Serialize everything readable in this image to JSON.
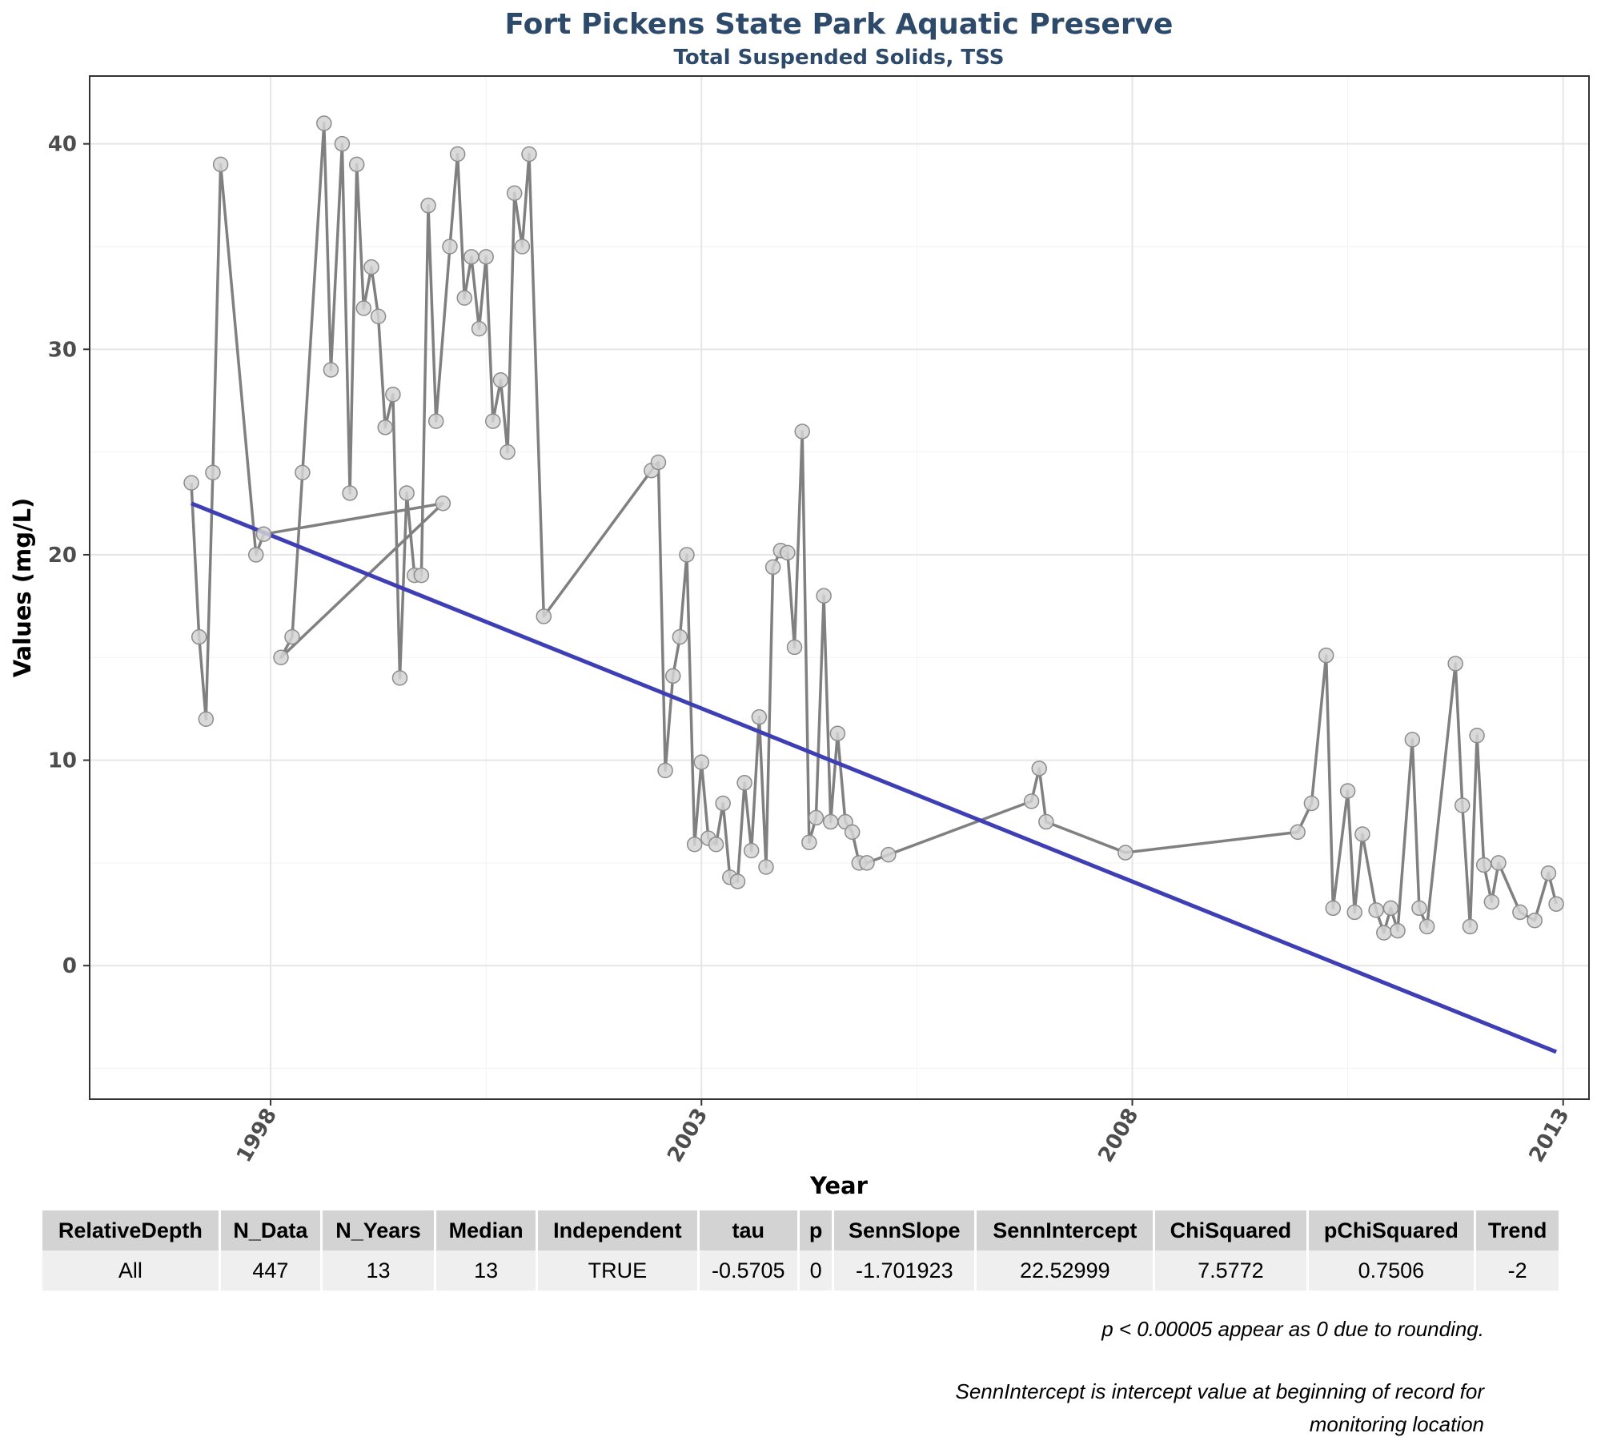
{
  "chart_data": {
    "type": "line",
    "title": "Fort Pickens State Park Aquatic Preserve",
    "subtitle": "Total Suspended Solids, TSS",
    "xlabel": "Year",
    "ylabel": "Values (mg/L)",
    "xlim": [
      1995.9,
      2013.3
    ],
    "ylim": [
      -6.5,
      43.3
    ],
    "x_ticks": [
      1998,
      2003,
      2008,
      2013
    ],
    "y_ticks": [
      0,
      10,
      20,
      30,
      40
    ],
    "grid": true,
    "colors": {
      "series": "#808080",
      "point_fill": "#d3d3d3",
      "point_stroke": "#8c8c8c",
      "trend": "#3f3fb5",
      "title": "#2e4a6b"
    },
    "series": [
      {
        "name": "TSS",
        "x": [
          1997.08,
          1997.17,
          1997.25,
          1997.33,
          1997.42,
          1997.83,
          1997.92,
          2000.0,
          1998.12,
          1998.25,
          1998.37,
          1998.62,
          1998.7,
          1998.83,
          1998.92,
          1999.0,
          1999.08,
          1999.17,
          1999.25,
          1999.33,
          1999.42,
          1999.5,
          1999.58,
          1999.67,
          1999.75,
          1999.83,
          1999.92,
          2000.08,
          2000.17,
          2000.25,
          2000.33,
          2000.42,
          2000.5,
          2000.58,
          2000.67,
          2000.75,
          2000.83,
          2000.92,
          2001.0,
          2001.17,
          2002.42,
          2002.5,
          2002.58,
          2002.67,
          2002.75,
          2002.83,
          2002.92,
          2003.0,
          2003.08,
          2003.17,
          2003.25,
          2003.33,
          2003.42,
          2003.5,
          2003.58,
          2003.67,
          2003.75,
          2003.83,
          2003.92,
          2004.0,
          2004.08,
          2004.17,
          2004.25,
          2004.33,
          2004.42,
          2004.5,
          2004.58,
          2004.67,
          2004.75,
          2004.83,
          2004.92,
          2005.17,
          2006.83,
          2006.92,
          2007.0,
          2007.92,
          2009.92,
          2010.08,
          2010.25,
          2010.33,
          2010.5,
          2010.58,
          2010.67,
          2010.83,
          2010.92,
          2011.0,
          2011.08,
          2011.25,
          2011.33,
          2011.42,
          2011.75,
          2011.83,
          2011.92,
          2012.0,
          2012.08,
          2012.17,
          2012.25,
          2012.5,
          2012.67,
          2012.83,
          2012.92
        ],
        "values": [
          23.5,
          16.0,
          12.0,
          24.0,
          39.0,
          20.0,
          21.0,
          22.5,
          15.0,
          16.0,
          24.0,
          41.0,
          29.0,
          40.0,
          23.0,
          39.0,
          32.0,
          34.0,
          31.6,
          26.2,
          27.8,
          14.0,
          23.0,
          19.0,
          19.0,
          37.0,
          26.5,
          35.0,
          39.5,
          32.5,
          34.5,
          31.0,
          34.5,
          26.5,
          28.5,
          25.0,
          37.6,
          35.0,
          39.5,
          17.0,
          24.1,
          24.5,
          9.5,
          14.1,
          16.0,
          20.0,
          5.9,
          9.9,
          6.2,
          5.9,
          7.9,
          4.3,
          4.1,
          8.9,
          5.6,
          12.1,
          4.8,
          19.4,
          20.2,
          20.1,
          15.5,
          26.0,
          6.0,
          7.2,
          18.0,
          7.0,
          11.3,
          7.0,
          6.5,
          5.0,
          5.0,
          5.4,
          8.0,
          9.6,
          7.0,
          5.5,
          6.5,
          7.9,
          15.1,
          2.8,
          8.5,
          2.6,
          6.4,
          2.7,
          1.6,
          2.8,
          1.7,
          11.0,
          2.8,
          1.9,
          14.7,
          7.8,
          1.9,
          11.2,
          4.9,
          3.1,
          5.0,
          2.6,
          2.2,
          4.5,
          3.0
        ]
      },
      {
        "name": "Senn trend",
        "x": [
          1997.08,
          2012.92
        ],
        "values": [
          22.5,
          -4.2
        ]
      }
    ],
    "table": {
      "headers": [
        "RelativeDepth",
        "N_Data",
        "N_Years",
        "Median",
        "Independent",
        "tau",
        "p",
        "SennSlope",
        "SennIntercept",
        "ChiSquared",
        "pChiSquared",
        "Trend"
      ],
      "rows": [
        [
          "All",
          "447",
          "13",
          "13",
          "TRUE",
          "-0.5705",
          "0",
          "-1.701923",
          "22.52999",
          "7.5772",
          "0.7506",
          "-2"
        ]
      ]
    },
    "notes": [
      "p < 0.00005 appear as 0 due to rounding.",
      "SennIntercept is intercept value at beginning of record for monitoring location"
    ]
  }
}
